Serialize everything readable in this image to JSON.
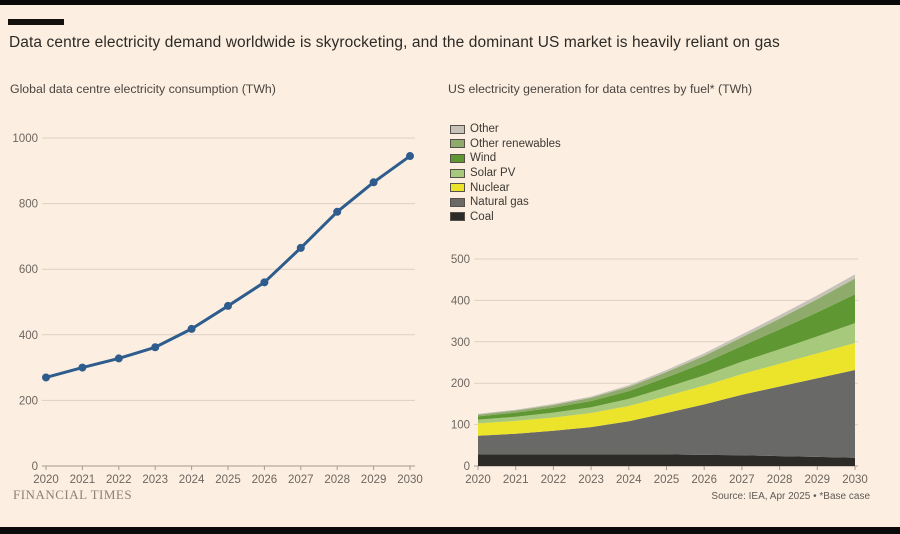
{
  "page": {
    "title": "Data centre electricity demand worldwide is skyrocketing, and the dominant US market is heavily reliant on gas",
    "background_color": "#fcefe1",
    "accent_bar_color": "#14100d"
  },
  "footer": {
    "brand": "FINANCIAL TIMES",
    "source": "Source: IEA, Apr 2025 • *Base case"
  },
  "chart_data": [
    {
      "type": "line",
      "title": "Global data centre electricity consumption (TWh)",
      "x": [
        2020,
        2021,
        2022,
        2023,
        2024,
        2025,
        2026,
        2027,
        2028,
        2029,
        2030
      ],
      "series": [
        {
          "name": "Global data centre electricity consumption",
          "color": "#2d5c8d",
          "values": [
            270,
            300,
            328,
            362,
            418,
            488,
            560,
            665,
            775,
            865,
            945
          ]
        }
      ],
      "ylim": [
        0,
        1000
      ],
      "yticks": [
        0,
        200,
        400,
        600,
        800,
        1000
      ],
      "ylabel": "TWh",
      "grid": true,
      "markers": true,
      "legend_position": "none"
    },
    {
      "type": "area",
      "title": "US electricity generation for data centres by fuel* (TWh)",
      "x": [
        2020,
        2021,
        2022,
        2023,
        2024,
        2025,
        2026,
        2027,
        2028,
        2029,
        2030
      ],
      "series": [
        {
          "name": "Coal",
          "color": "#2d2b28",
          "values": [
            28,
            28,
            28,
            28,
            28,
            28,
            27,
            26,
            24,
            22,
            20
          ]
        },
        {
          "name": "Natural gas",
          "color": "#696967",
          "values": [
            45,
            50,
            57,
            66,
            80,
            100,
            122,
            146,
            168,
            190,
            212
          ]
        },
        {
          "name": "Nuclear",
          "color": "#ece32b",
          "values": [
            30,
            31,
            32,
            34,
            37,
            41,
            45,
            50,
            55,
            60,
            65
          ]
        },
        {
          "name": "Solar PV",
          "color": "#a6c97b",
          "values": [
            9,
            10,
            12,
            14,
            17,
            21,
            25,
            30,
            35,
            41,
            48
          ]
        },
        {
          "name": "Wind",
          "color": "#5f9733",
          "values": [
            8,
            10,
            12,
            15,
            19,
            24,
            30,
            38,
            48,
            58,
            70
          ]
        },
        {
          "name": "Other renewables",
          "color": "#8fab6b",
          "values": [
            4,
            5,
            6,
            8,
            10,
            13,
            17,
            21,
            26,
            32,
            38
          ]
        },
        {
          "name": "Other",
          "color": "#c7c3bb",
          "values": [
            2,
            2,
            3,
            3,
            4,
            5,
            6,
            7,
            8,
            9,
            10
          ]
        }
      ],
      "ylim": [
        0,
        500
      ],
      "yticks": [
        0,
        100,
        200,
        300,
        400,
        500
      ],
      "ylabel": "TWh",
      "grid": true,
      "legend_position": "top-left",
      "legend_order_note": "legend shown top-of-stack first: Other, Other renewables, Wind, Solar PV, Nuclear, Natural gas, Coal",
      "footnote": "*Base case"
    }
  ]
}
